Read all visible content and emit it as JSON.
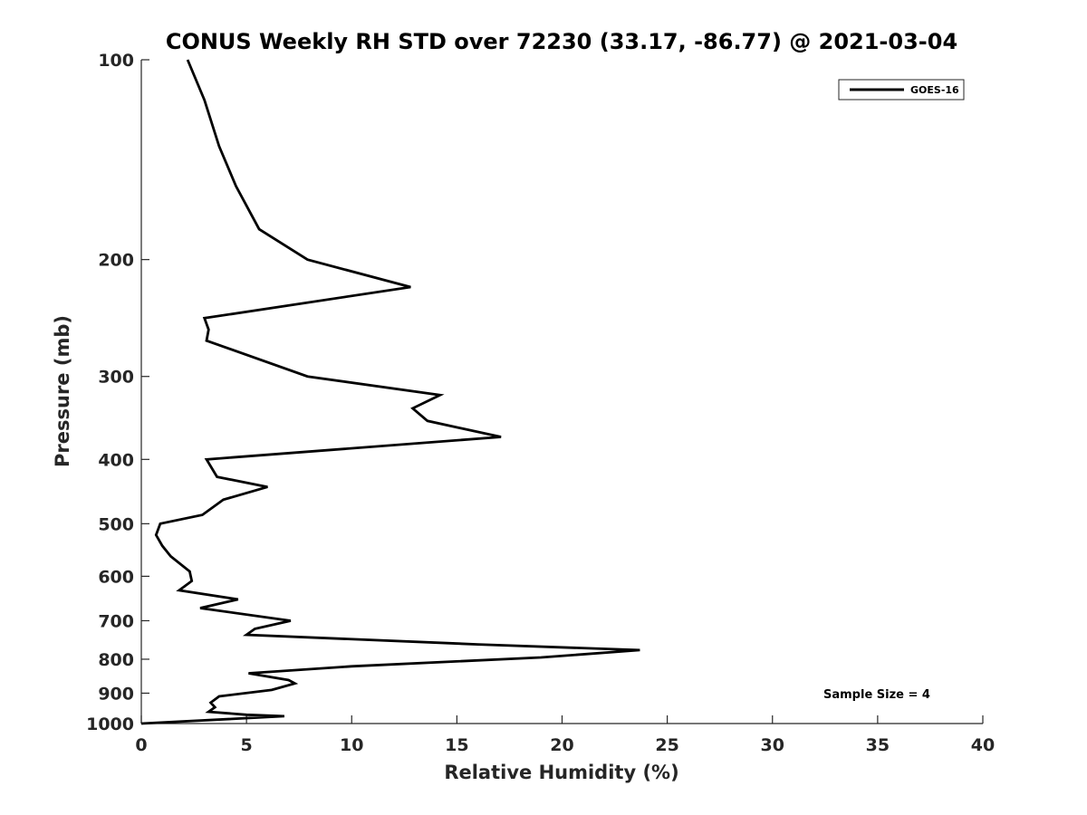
{
  "chart_data": {
    "type": "line",
    "title": "CONUS Weekly RH STD over 72230 (33.17, -86.77) @ 2021-03-04",
    "xlabel": "Relative Humidity (%)",
    "ylabel": "Pressure (mb)",
    "xlim": [
      0,
      40
    ],
    "ylim": [
      100,
      1000
    ],
    "y_scale": "log",
    "y_reversed": true,
    "x_ticks": [
      0,
      5,
      10,
      15,
      20,
      25,
      30,
      35,
      40
    ],
    "y_ticks": [
      100,
      200,
      300,
      400,
      500,
      600,
      700,
      800,
      900,
      1000
    ],
    "grid": false,
    "legend_position": "top-right",
    "series": [
      {
        "name": "GOES-16",
        "color": "#000000",
        "x": [
          2.2,
          3.0,
          3.7,
          4.5,
          5.6,
          7.9,
          12.8,
          3.0,
          3.2,
          3.1,
          7.9,
          14.2,
          12.9,
          13.6,
          17.1,
          3.1,
          3.6,
          6.0,
          3.9,
          2.9,
          0.9,
          0.7,
          1.0,
          1.4,
          2.3,
          2.4,
          1.8,
          4.6,
          2.8,
          7.1,
          5.4,
          5.0,
          16.0,
          23.7,
          19.0,
          10.0,
          5.1,
          7.0,
          7.3,
          6.2,
          3.7,
          3.3,
          3.5,
          3.2,
          5.0,
          6.8,
          0.0
        ],
        "y": [
          100,
          115,
          135,
          155,
          180,
          200,
          220,
          245,
          255,
          265,
          300,
          320,
          335,
          350,
          370,
          400,
          425,
          440,
          460,
          485,
          500,
          520,
          540,
          560,
          590,
          610,
          630,
          650,
          670,
          700,
          720,
          735,
          760,
          775,
          795,
          820,
          840,
          860,
          870,
          890,
          910,
          930,
          945,
          960,
          970,
          975,
          1000
        ]
      }
    ],
    "annotations": [
      "Sample Size = 4"
    ]
  }
}
